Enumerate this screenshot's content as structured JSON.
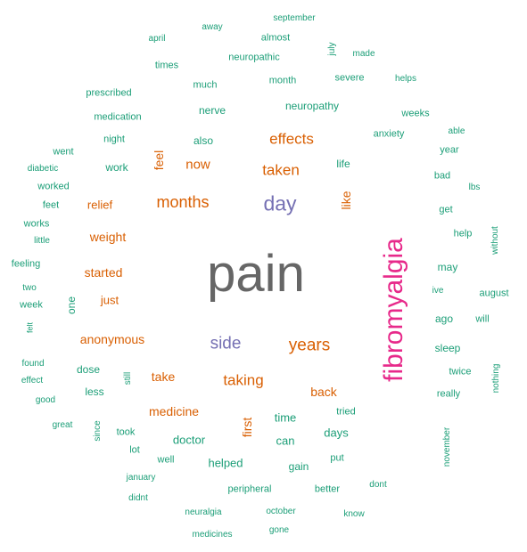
{
  "colors": {
    "teal": "#1b9e77",
    "orange": "#d95f02",
    "purple": "#7570b3",
    "magenta": "#e7298a",
    "gray": "#666666"
  },
  "words": {
    "pain": "pain",
    "fibromyalgia": "fibromyalgia",
    "day": "day",
    "months": "months",
    "side": "side",
    "years": "years",
    "effects": "effects",
    "taken": "taken",
    "taking": "taking",
    "now": "now",
    "weight": "weight",
    "started": "started",
    "anonymous": "anonymous",
    "medicine": "medicine",
    "back": "back",
    "take": "take",
    "just": "just",
    "relief": "relief",
    "feel": "feel",
    "like": "like",
    "first": "first",
    "september": "september",
    "away": "away",
    "almost": "almost",
    "april": "april",
    "july": "july",
    "made": "made",
    "times": "times",
    "neuropathic": "neuropathic",
    "severe": "severe",
    "helps": "helps",
    "prescribed": "prescribed",
    "much": "much",
    "month": "month",
    "medication": "medication",
    "neuropathy": "neuropathy",
    "weeks": "weeks",
    "nerve": "nerve",
    "able": "able",
    "night": "night",
    "also": "also",
    "anxiety": "anxiety",
    "went": "went",
    "year": "year",
    "diabetic": "diabetic",
    "work": "work",
    "life": "life",
    "bad": "bad",
    "worked": "worked",
    "lbs": "lbs",
    "feet": "feet",
    "get": "get",
    "works": "works",
    "help": "help",
    "without": "without",
    "little": "little",
    "feeling": "feeling",
    "may": "may",
    "two": "two",
    "ive": "ive",
    "august": "august",
    "week": "week",
    "one": "one",
    "ago": "ago",
    "will": "will",
    "felt": "felt",
    "sleep": "sleep",
    "found": "found",
    "dose": "dose",
    "effect": "effect",
    "still": "still",
    "twice": "twice",
    "nothing": "nothing",
    "less": "less",
    "really": "really",
    "good": "good",
    "tried": "tried",
    "time": "time",
    "great": "great",
    "since": "since",
    "took": "took",
    "days": "days",
    "doctor": "doctor",
    "can": "can",
    "november": "november",
    "lot": "lot",
    "put": "put",
    "well": "well",
    "helped": "helped",
    "gain": "gain",
    "january": "january",
    "dont": "dont",
    "peripheral": "peripheral",
    "better": "better",
    "didnt": "didnt",
    "neuralgia": "neuralgia",
    "october": "october",
    "know": "know",
    "gone": "gone",
    "medicines": "medicines"
  }
}
